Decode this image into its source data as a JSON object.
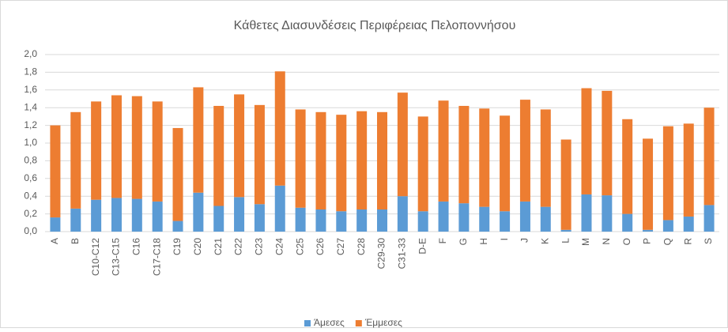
{
  "chart_data": {
    "type": "stacked_bar",
    "title": "Κάθετες Διασυνδέσεις Περιφέρειας Πελοποννήσου",
    "categories": [
      "A",
      "B",
      "C10-C12",
      "C13-C15",
      "C16",
      "C17-C18",
      "C19",
      "C20",
      "C21",
      "C22",
      "C23",
      "C24",
      "C25",
      "C26",
      "C27",
      "C28",
      "C29-30",
      "C31-33",
      "D-E",
      "F",
      "G",
      "H",
      "I",
      "J",
      "K",
      "L",
      "M",
      "N",
      "O",
      "P",
      "Q",
      "R",
      "S"
    ],
    "series": [
      {
        "name": "Άμεσες",
        "color": "#5b9bd5",
        "values": [
          0.16,
          0.26,
          0.36,
          0.38,
          0.37,
          0.34,
          0.12,
          0.44,
          0.29,
          0.39,
          0.31,
          0.52,
          0.27,
          0.25,
          0.23,
          0.25,
          0.25,
          0.4,
          0.23,
          0.34,
          0.32,
          0.28,
          0.23,
          0.34,
          0.28,
          0.02,
          0.42,
          0.41,
          0.2,
          0.02,
          0.13,
          0.17,
          0.3
        ]
      },
      {
        "name": "Έμμεσες",
        "color": "#ed7d31",
        "values": [
          1.04,
          1.09,
          1.11,
          1.16,
          1.16,
          1.13,
          1.05,
          1.19,
          1.13,
          1.16,
          1.12,
          1.29,
          1.11,
          1.1,
          1.09,
          1.11,
          1.1,
          1.17,
          1.07,
          1.14,
          1.1,
          1.11,
          1.08,
          1.15,
          1.1,
          1.02,
          1.2,
          1.18,
          1.07,
          1.03,
          1.06,
          1.05,
          1.1
        ]
      }
    ],
    "ylim": [
      0,
      2
    ],
    "yticks": [
      {
        "value": 0,
        "label": "0,0"
      },
      {
        "value": 0.2,
        "label": "0,2"
      },
      {
        "value": 0.4,
        "label": "0,4"
      },
      {
        "value": 0.6,
        "label": "0,6"
      },
      {
        "value": 0.8,
        "label": "0,8"
      },
      {
        "value": 1,
        "label": "1,0"
      },
      {
        "value": 1.2,
        "label": "1,2"
      },
      {
        "value": 1.4,
        "label": "1,4"
      },
      {
        "value": 1.6,
        "label": "1,6"
      },
      {
        "value": 1.8,
        "label": "1,8"
      },
      {
        "value": 2,
        "label": "2,0"
      }
    ],
    "grid": true,
    "legend": "bottom"
  }
}
